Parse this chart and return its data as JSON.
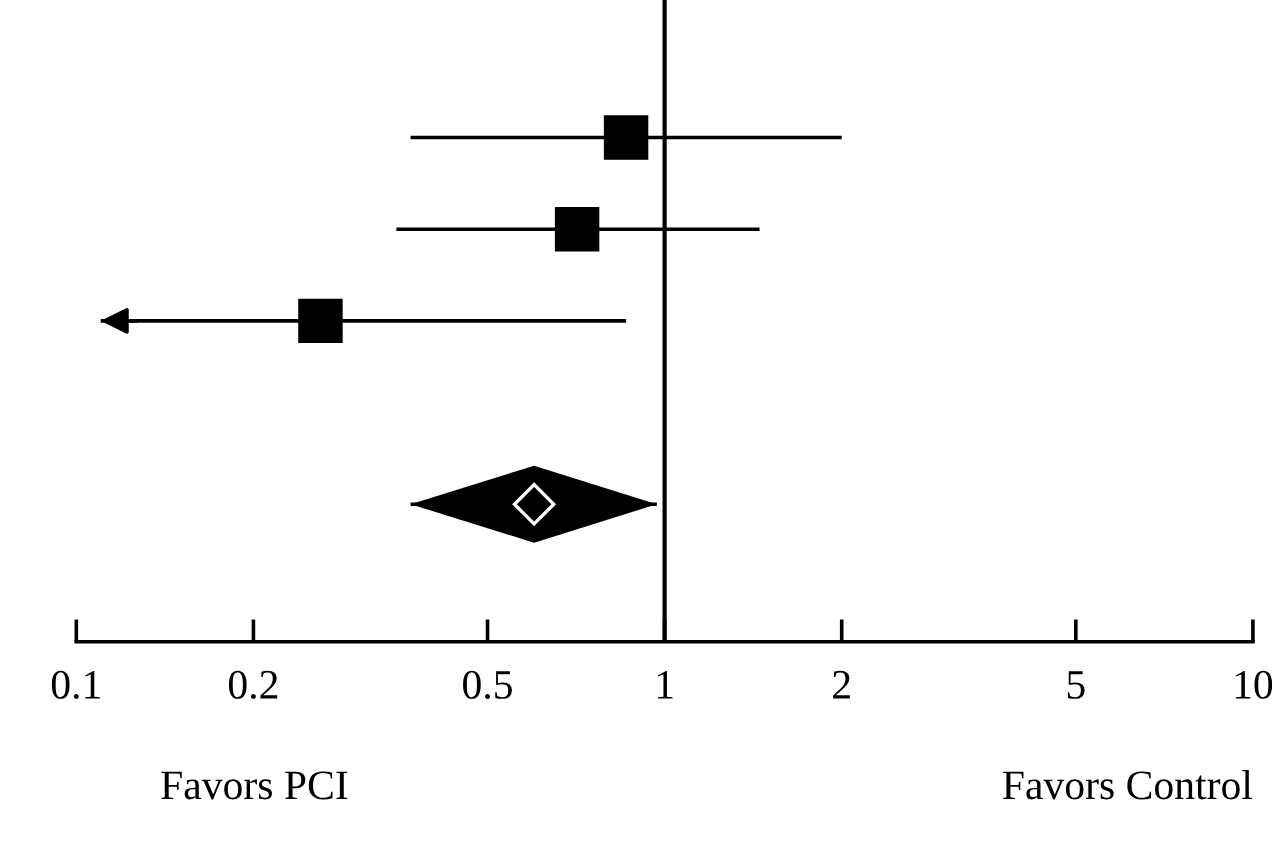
{
  "chart_data": {
    "type": "scatter",
    "orientation": "horizontal",
    "categories": [
      null,
      null,
      null,
      null,
      null,
      null,
      null
    ],
    "series": [
      {
        "color": "#000000",
        "marker": "square",
        "values": [
          null,
          0.86,
          0.71,
          0.26,
          null,
          null,
          null
        ],
        "errors": [
          null,
          [
            0.37,
            2.0
          ],
          [
            0.35,
            1.45
          ],
          [
            0.11,
            0.86
          ],
          null,
          null,
          null
        ]
      },
      {
        "color": "#000000",
        "marker": "diamond",
        "values": [
          null,
          null,
          null,
          null,
          null,
          0.6,
          null
        ],
        "errors": [
          null,
          null,
          null,
          null,
          null,
          [
            0.37,
            0.97
          ],
          null
        ]
      }
    ],
    "log": "x",
    "xlim": [
      0.1,
      10
    ],
    "xticks": [
      0.1,
      0.2,
      0.5,
      1,
      2,
      5,
      10
    ],
    "ref_lines": [
      {
        "axis": "x",
        "value": 1,
        "color": "#000000"
      }
    ],
    "annotations": [
      "Favors PCI",
      "Favors Control"
    ],
    "grid": false,
    "legend": false
  }
}
